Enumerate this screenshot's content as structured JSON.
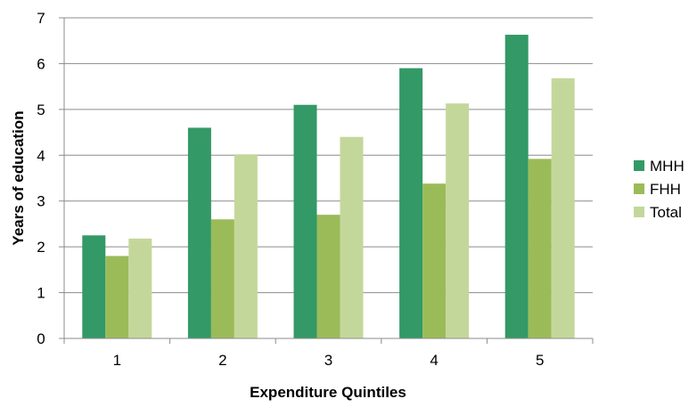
{
  "chart_data": {
    "type": "bar",
    "title": "",
    "xlabel": "Expenditure Quintiles",
    "ylabel": "Years of education",
    "categories": [
      "1",
      "2",
      "3",
      "4",
      "5"
    ],
    "series": [
      {
        "name": "MHH",
        "color": "#339966",
        "values": [
          2.25,
          4.6,
          5.1,
          5.9,
          6.63
        ]
      },
      {
        "name": "FHH",
        "color": "#9BBB59",
        "values": [
          1.8,
          2.6,
          2.7,
          3.38,
          3.92
        ]
      },
      {
        "name": "Total",
        "color": "#C4D79B",
        "values": [
          2.18,
          4.02,
          4.4,
          5.13,
          5.68
        ]
      }
    ],
    "ylim": [
      0,
      7
    ],
    "yticks": [
      "0",
      "1",
      "2",
      "3",
      "4",
      "5",
      "6",
      "7"
    ],
    "grid": true,
    "legend_position": "right"
  }
}
